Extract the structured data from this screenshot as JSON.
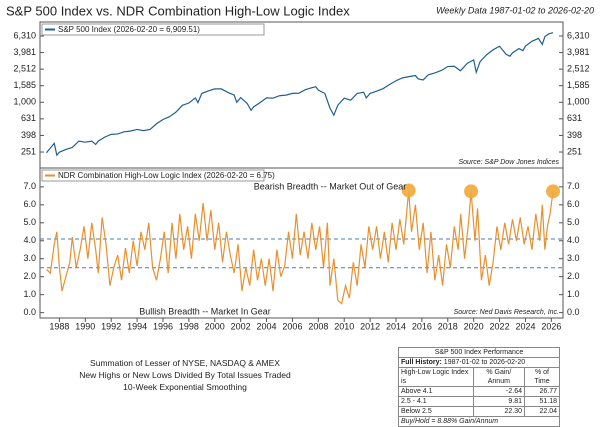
{
  "header": {
    "title": "S&P 500 Index vs. NDR Combination High-Low Logic Index",
    "date_range": "Weekly Data 1987-01-02 to 2026-02-20"
  },
  "chart_data": [
    {
      "type": "line",
      "log_y": true,
      "x": [
        1987.0,
        1987.6,
        1987.8,
        1988.0,
        1988.5,
        1989.0,
        1989.5,
        1990.0,
        1990.5,
        1990.8,
        1991.0,
        1991.5,
        1992.0,
        1992.5,
        1993.0,
        1993.5,
        1994.0,
        1994.5,
        1995.0,
        1995.5,
        1996.0,
        1996.5,
        1997.0,
        1997.5,
        1998.0,
        1998.5,
        1998.7,
        1999.0,
        1999.5,
        2000.0,
        2000.5,
        2001.0,
        2001.5,
        2001.7,
        2002.0,
        2002.5,
        2002.8,
        2003.0,
        2003.5,
        2004.0,
        2004.5,
        2005.0,
        2005.5,
        2006.0,
        2006.5,
        2007.0,
        2007.5,
        2007.8,
        2008.0,
        2008.5,
        2008.9,
        2009.2,
        2009.5,
        2010.0,
        2010.5,
        2011.0,
        2011.5,
        2011.7,
        2012.0,
        2012.5,
        2013.0,
        2013.5,
        2014.0,
        2014.5,
        2015.0,
        2015.5,
        2015.7,
        2016.1,
        2016.5,
        2017.0,
        2017.5,
        2018.0,
        2018.5,
        2018.98,
        2019.5,
        2020.0,
        2020.2,
        2020.5,
        2021.0,
        2021.5,
        2022.0,
        2022.5,
        2022.8,
        2023.0,
        2023.5,
        2023.8,
        2024.0,
        2024.5,
        2025.0,
        2025.3,
        2025.5,
        2025.8,
        2026.13
      ],
      "series": [
        {
          "name": "S&P 500 Index (2026-02-20 = 6,909.51)",
          "color": "#1f5f95",
          "values": [
            246,
            320,
            230,
            250,
            270,
            285,
            340,
            330,
            340,
            310,
            340,
            380,
            410,
            415,
            440,
            450,
            470,
            455,
            470,
            550,
            620,
            670,
            760,
            920,
            980,
            1130,
            990,
            1280,
            1370,
            1450,
            1450,
            1320,
            1220,
            1000,
            1140,
            970,
            800,
            880,
            990,
            1130,
            1120,
            1200,
            1220,
            1280,
            1290,
            1420,
            1500,
            1540,
            1400,
            1280,
            850,
            700,
            920,
            1120,
            1060,
            1280,
            1320,
            1130,
            1280,
            1360,
            1460,
            1640,
            1820,
            1970,
            2040,
            2100,
            1920,
            1860,
            2150,
            2260,
            2420,
            2700,
            2720,
            2400,
            2950,
            3250,
            2300,
            3100,
            3750,
            4300,
            4750,
            3800,
            3600,
            3950,
            4450,
            4200,
            4750,
            5450,
            5900,
            5000,
            6200,
            6700,
            6909.51
          ]
        }
      ],
      "xlim": [
        1986.5,
        2026.9
      ],
      "ylim": [
        161,
        9310
      ],
      "yticks": [
        251,
        398,
        631,
        {
          "value": 1000,
          "label": "1,000"
        },
        {
          "value": 1585,
          "label": "1,585"
        },
        {
          "value": 2512,
          "label": "2,512"
        },
        {
          "value": 3981,
          "label": "3,981"
        },
        {
          "value": 6310,
          "label": "6,310"
        }
      ],
      "source": "Source:  S&P Dow Jones Indices"
    },
    {
      "type": "line",
      "x": [
        1987.0,
        1987.3,
        1987.6,
        1987.8,
        1988.0,
        1988.2,
        1988.5,
        1988.8,
        1989.0,
        1989.3,
        1989.6,
        1989.9,
        1990.2,
        1990.5,
        1990.8,
        1991.0,
        1991.3,
        1991.6,
        1991.9,
        1992.2,
        1992.5,
        1992.8,
        1993.1,
        1993.4,
        1993.7,
        1994.0,
        1994.3,
        1994.6,
        1994.9,
        1995.2,
        1995.5,
        1995.8,
        1996.1,
        1996.4,
        1996.7,
        1997.0,
        1997.3,
        1997.6,
        1997.9,
        1998.2,
        1998.5,
        1998.8,
        1999.1,
        1999.4,
        1999.7,
        2000.0,
        2000.3,
        2000.6,
        2000.9,
        2001.2,
        2001.5,
        2001.8,
        2002.1,
        2002.4,
        2002.7,
        2003.0,
        2003.3,
        2003.6,
        2003.9,
        2004.2,
        2004.5,
        2004.8,
        2005.1,
        2005.4,
        2005.7,
        2006.0,
        2006.3,
        2006.6,
        2006.9,
        2007.2,
        2007.5,
        2007.8,
        2008.1,
        2008.4,
        2008.7,
        2008.9,
        2009.2,
        2009.5,
        2009.8,
        2010.1,
        2010.4,
        2010.7,
        2011.0,
        2011.3,
        2011.6,
        2011.9,
        2012.2,
        2012.5,
        2012.8,
        2013.1,
        2013.4,
        2013.7,
        2014.0,
        2014.3,
        2014.6,
        2014.98,
        2015.2,
        2015.5,
        2015.8,
        2016.1,
        2016.4,
        2016.7,
        2017.0,
        2017.3,
        2017.6,
        2017.9,
        2018.2,
        2018.5,
        2018.8,
        2019.0,
        2019.3,
        2019.6,
        2019.8,
        2020.1,
        2020.3,
        2020.6,
        2020.9,
        2021.2,
        2021.5,
        2021.8,
        2022.1,
        2022.4,
        2022.7,
        2023.0,
        2023.3,
        2023.6,
        2023.9,
        2024.2,
        2024.5,
        2024.8,
        2025.1,
        2025.3,
        2025.5,
        2025.7,
        2025.9,
        2026.13
      ],
      "series": [
        {
          "name": "NDR Combination High-Low Logic Index (2026-02-20 = 6.75)",
          "color": "#e8902e",
          "values": [
            2.4,
            2.2,
            3.8,
            4.5,
            2.5,
            1.2,
            2.0,
            2.8,
            4.2,
            2.5,
            3.5,
            4.8,
            3.0,
            5.0,
            3.5,
            2.2,
            5.3,
            3.8,
            1.5,
            2.5,
            3.2,
            1.8,
            3.6,
            2.2,
            4.0,
            2.6,
            4.5,
            3.5,
            5.0,
            2.5,
            1.8,
            3.0,
            4.5,
            2.2,
            5.0,
            3.0,
            5.5,
            3.5,
            4.8,
            3.0,
            5.5,
            4.0,
            6.1,
            4.0,
            5.7,
            3.5,
            5.0,
            2.8,
            4.5,
            3.2,
            2.2,
            3.8,
            1.2,
            2.5,
            1.5,
            3.5,
            1.8,
            3.0,
            1.5,
            3.0,
            1.2,
            3.5,
            2.0,
            2.6,
            4.5,
            3.0,
            5.5,
            3.2,
            4.5,
            3.0,
            5.0,
            3.5,
            4.8,
            2.5,
            5.0,
            1.5,
            3.0,
            0.7,
            0.5,
            1.5,
            0.8,
            2.8,
            1.5,
            3.8,
            2.5,
            4.8,
            3.5,
            4.8,
            3.0,
            4.5,
            2.8,
            5.0,
            3.5,
            5.2,
            3.8,
            6.8,
            4.5,
            6.0,
            3.5,
            5.0,
            2.2,
            4.5,
            1.8,
            3.2,
            1.5,
            3.8,
            2.5,
            4.8,
            3.5,
            5.5,
            3.0,
            5.0,
            6.75,
            4.0,
            5.8,
            1.8,
            3.2,
            1.5,
            2.8,
            4.8,
            3.5,
            5.0,
            3.8,
            5.2,
            4.0,
            5.3,
            3.8,
            4.8,
            3.5,
            5.5,
            4.0,
            6.0,
            3.5,
            4.8,
            5.5,
            6.75
          ]
        }
      ],
      "highlights": {
        "x": [
          2014.98,
          2019.8,
          2026.13
        ],
        "y": [
          6.8,
          6.75,
          6.75
        ],
        "color": "#f2a93b"
      },
      "ref_lines": [
        4.1,
        2.5
      ],
      "xlim": [
        1986.5,
        2026.9
      ],
      "xticks": [
        1988,
        1990,
        1992,
        1994,
        1996,
        1998,
        2000,
        2002,
        2004,
        2006,
        2008,
        2010,
        2012,
        2014,
        2016,
        2018,
        2020,
        2022,
        2024,
        2026
      ],
      "ylim": [
        -0.3,
        8.05
      ],
      "yticks": [
        {
          "value": 0,
          "label": "0.0"
        },
        {
          "value": 1,
          "label": "1.0"
        },
        {
          "value": 2,
          "label": "2.0"
        },
        {
          "value": 3,
          "label": "3.0"
        },
        {
          "value": 4,
          "label": "4.0"
        },
        {
          "value": 5,
          "label": "5.0"
        },
        {
          "value": 6,
          "label": "6.0"
        },
        {
          "value": 7,
          "label": "7.0"
        }
      ],
      "annotations": [
        "Bearish Breadth -- Market Out of Gear",
        "Bullish Breadth -- Market In Gear"
      ],
      "source": "Source:  Ned Davis Research, Inc."
    }
  ],
  "notes": [
    "Summation of Lesser of NYSE, NASDAQ & AMEX",
    "New Highs or New Lows Divided By Total Issues Traded",
    "10-Week Exponential Smoothing"
  ],
  "table": {
    "title": "S&P 500 Index Performance",
    "history_label": "Full History:",
    "history_range": "1987-01-02 to 2026-02-20",
    "headers": [
      "High-Low Logic Index is",
      "% Gain/ Annum",
      "% of Time"
    ],
    "rows": [
      [
        "Above 4.1",
        "-2.64",
        "26.77"
      ],
      [
        "2.5 - 4.1",
        "9.81",
        "51.18"
      ],
      [
        "Below 2.5",
        "22.30",
        "22.04"
      ]
    ],
    "footer": "Buy/Hold = 8.88% Gain/Annum"
  }
}
